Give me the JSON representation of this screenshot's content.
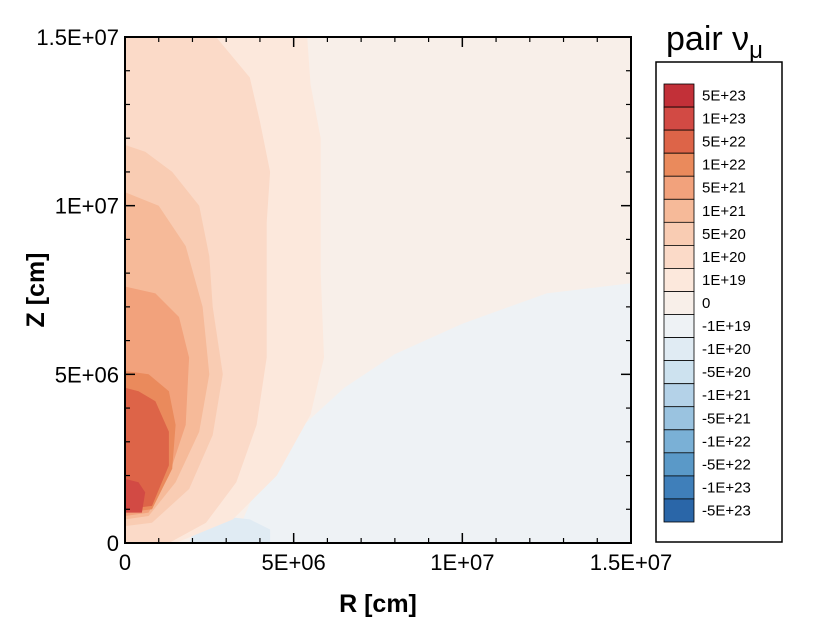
{
  "chart_data": {
    "type": "heatmap",
    "title": "pair ν",
    "title_subscript": "μ",
    "xlabel": "R [cm]",
    "ylabel": "Z [cm]",
    "xlim": [
      0,
      15000000
    ],
    "ylim": [
      0,
      15000000
    ],
    "x_ticks": [
      {
        "value": 0,
        "label": "0"
      },
      {
        "value": 5000000,
        "label": "5E+06"
      },
      {
        "value": 10000000,
        "label": "1E+07"
      },
      {
        "value": 15000000,
        "label": "1.5E+07"
      }
    ],
    "y_ticks": [
      {
        "value": 0,
        "label": "0"
      },
      {
        "value": 5000000,
        "label": "5E+06"
      },
      {
        "value": 10000000,
        "label": "1E+07"
      },
      {
        "value": 15000000,
        "label": "1.5E+07"
      }
    ],
    "legend_position": "right",
    "colorbar": [
      {
        "label": "5E+23",
        "color": "#c23038"
      },
      {
        "label": "1E+23",
        "color": "#d24a44"
      },
      {
        "label": "5E+22",
        "color": "#dd6448"
      },
      {
        "label": "1E+22",
        "color": "#ea8a5c"
      },
      {
        "label": "5E+21",
        "color": "#f2a27c"
      },
      {
        "label": "1E+21",
        "color": "#f6ba99"
      },
      {
        "label": "5E+20",
        "color": "#f9ccb3"
      },
      {
        "label": "1E+20",
        "color": "#fbdac8"
      },
      {
        "label": "1E+19",
        "color": "#fce8dc"
      },
      {
        "label": "0",
        "color": "#f8efe9"
      },
      {
        "label": "-1E+19",
        "color": "#eef2f5"
      },
      {
        "label": "-1E+20",
        "color": "#e0ebf3"
      },
      {
        "label": "-5E+20",
        "color": "#cde2ef"
      },
      {
        "label": "-1E+21",
        "color": "#b4d2e8"
      },
      {
        "label": "-5E+21",
        "color": "#9ac3e0"
      },
      {
        "label": "-1E+22",
        "color": "#7ab0d6"
      },
      {
        "label": "-5E+22",
        "color": "#5a99c8"
      },
      {
        "label": "-1E+23",
        "color": "#3f7fba"
      },
      {
        "label": "-5E+23",
        "color": "#2a66a8"
      }
    ],
    "background_level": "0",
    "regions": [
      {
        "level": "-1E+19",
        "points": [
          [
            3500000,
            0
          ],
          [
            15000000,
            0
          ],
          [
            15000000,
            7700000
          ],
          [
            12500000,
            7400000
          ],
          [
            10000000,
            6500000
          ],
          [
            8000000,
            5600000
          ],
          [
            6500000,
            4600000
          ],
          [
            5300000,
            3500000
          ],
          [
            4500000,
            2400000
          ],
          [
            3800000,
            1400000
          ],
          [
            3500000,
            700000
          ]
        ]
      },
      {
        "level": "-1E+20",
        "points": [
          [
            1900000,
            0
          ],
          [
            4300000,
            0
          ],
          [
            4300000,
            400000
          ],
          [
            3700000,
            700000
          ],
          [
            2800000,
            800000
          ],
          [
            2100000,
            500000
          ]
        ]
      },
      {
        "level": "1E+19",
        "points": [
          [
            0,
            0
          ],
          [
            1500000,
            0
          ],
          [
            3200000,
            700000
          ],
          [
            4500000,
            2000000
          ],
          [
            5500000,
            3800000
          ],
          [
            5900000,
            5500000
          ],
          [
            5800000,
            8000000
          ],
          [
            5800000,
            10000000
          ],
          [
            5800000,
            12000000
          ],
          [
            5500000,
            13600000
          ],
          [
            5400000,
            15000000
          ],
          [
            0,
            15000000
          ]
        ]
      },
      {
        "level": "1E+20",
        "points": [
          [
            0,
            0
          ],
          [
            1300000,
            0
          ],
          [
            2400000,
            600000
          ],
          [
            3300000,
            1800000
          ],
          [
            3900000,
            3500000
          ],
          [
            4200000,
            5500000
          ],
          [
            4200000,
            7500000
          ],
          [
            4200000,
            9500000
          ],
          [
            4300000,
            11000000
          ],
          [
            4000000,
            12500000
          ],
          [
            3700000,
            13800000
          ],
          [
            2700000,
            15000000
          ],
          [
            0,
            15000000
          ]
        ]
      },
      {
        "level": "5E+20",
        "points": [
          [
            0,
            500000
          ],
          [
            800000,
            600000
          ],
          [
            1900000,
            1600000
          ],
          [
            2600000,
            3200000
          ],
          [
            2900000,
            5000000
          ],
          [
            2600000,
            7000000
          ],
          [
            2500000,
            8500000
          ],
          [
            2200000,
            10000000
          ],
          [
            1400000,
            11000000
          ],
          [
            600000,
            11600000
          ],
          [
            0,
            11800000
          ]
        ]
      },
      {
        "level": "1E+21",
        "points": [
          [
            0,
            700000
          ],
          [
            700000,
            800000
          ],
          [
            1500000,
            1800000
          ],
          [
            2200000,
            3300000
          ],
          [
            2500000,
            5000000
          ],
          [
            2300000,
            7000000
          ],
          [
            1800000,
            8800000
          ],
          [
            1000000,
            10000000
          ],
          [
            0,
            10400000
          ]
        ]
      },
      {
        "level": "5E+21",
        "points": [
          [
            0,
            800000
          ],
          [
            700000,
            900000
          ],
          [
            1300000,
            2000000
          ],
          [
            1800000,
            3500000
          ],
          [
            1900000,
            5500000
          ],
          [
            1600000,
            6700000
          ],
          [
            900000,
            7400000
          ],
          [
            0,
            7600000
          ]
        ]
      },
      {
        "level": "1E+22",
        "points": [
          [
            0,
            900000
          ],
          [
            800000,
            1000000
          ],
          [
            1400000,
            2200000
          ],
          [
            1500000,
            3500000
          ],
          [
            1300000,
            4500000
          ],
          [
            700000,
            5000000
          ],
          [
            0,
            5100000
          ]
        ]
      },
      {
        "level": "5E+22",
        "points": [
          [
            0,
            1000000
          ],
          [
            800000,
            1100000
          ],
          [
            1300000,
            2300000
          ],
          [
            1300000,
            3300000
          ],
          [
            900000,
            4200000
          ],
          [
            400000,
            4500000
          ],
          [
            0,
            4600000
          ]
        ]
      },
      {
        "level": "1E+23",
        "points": [
          [
            0,
            900000
          ],
          [
            500000,
            900000
          ],
          [
            600000,
            1500000
          ],
          [
            400000,
            1800000
          ],
          [
            0,
            1900000
          ]
        ]
      }
    ]
  }
}
